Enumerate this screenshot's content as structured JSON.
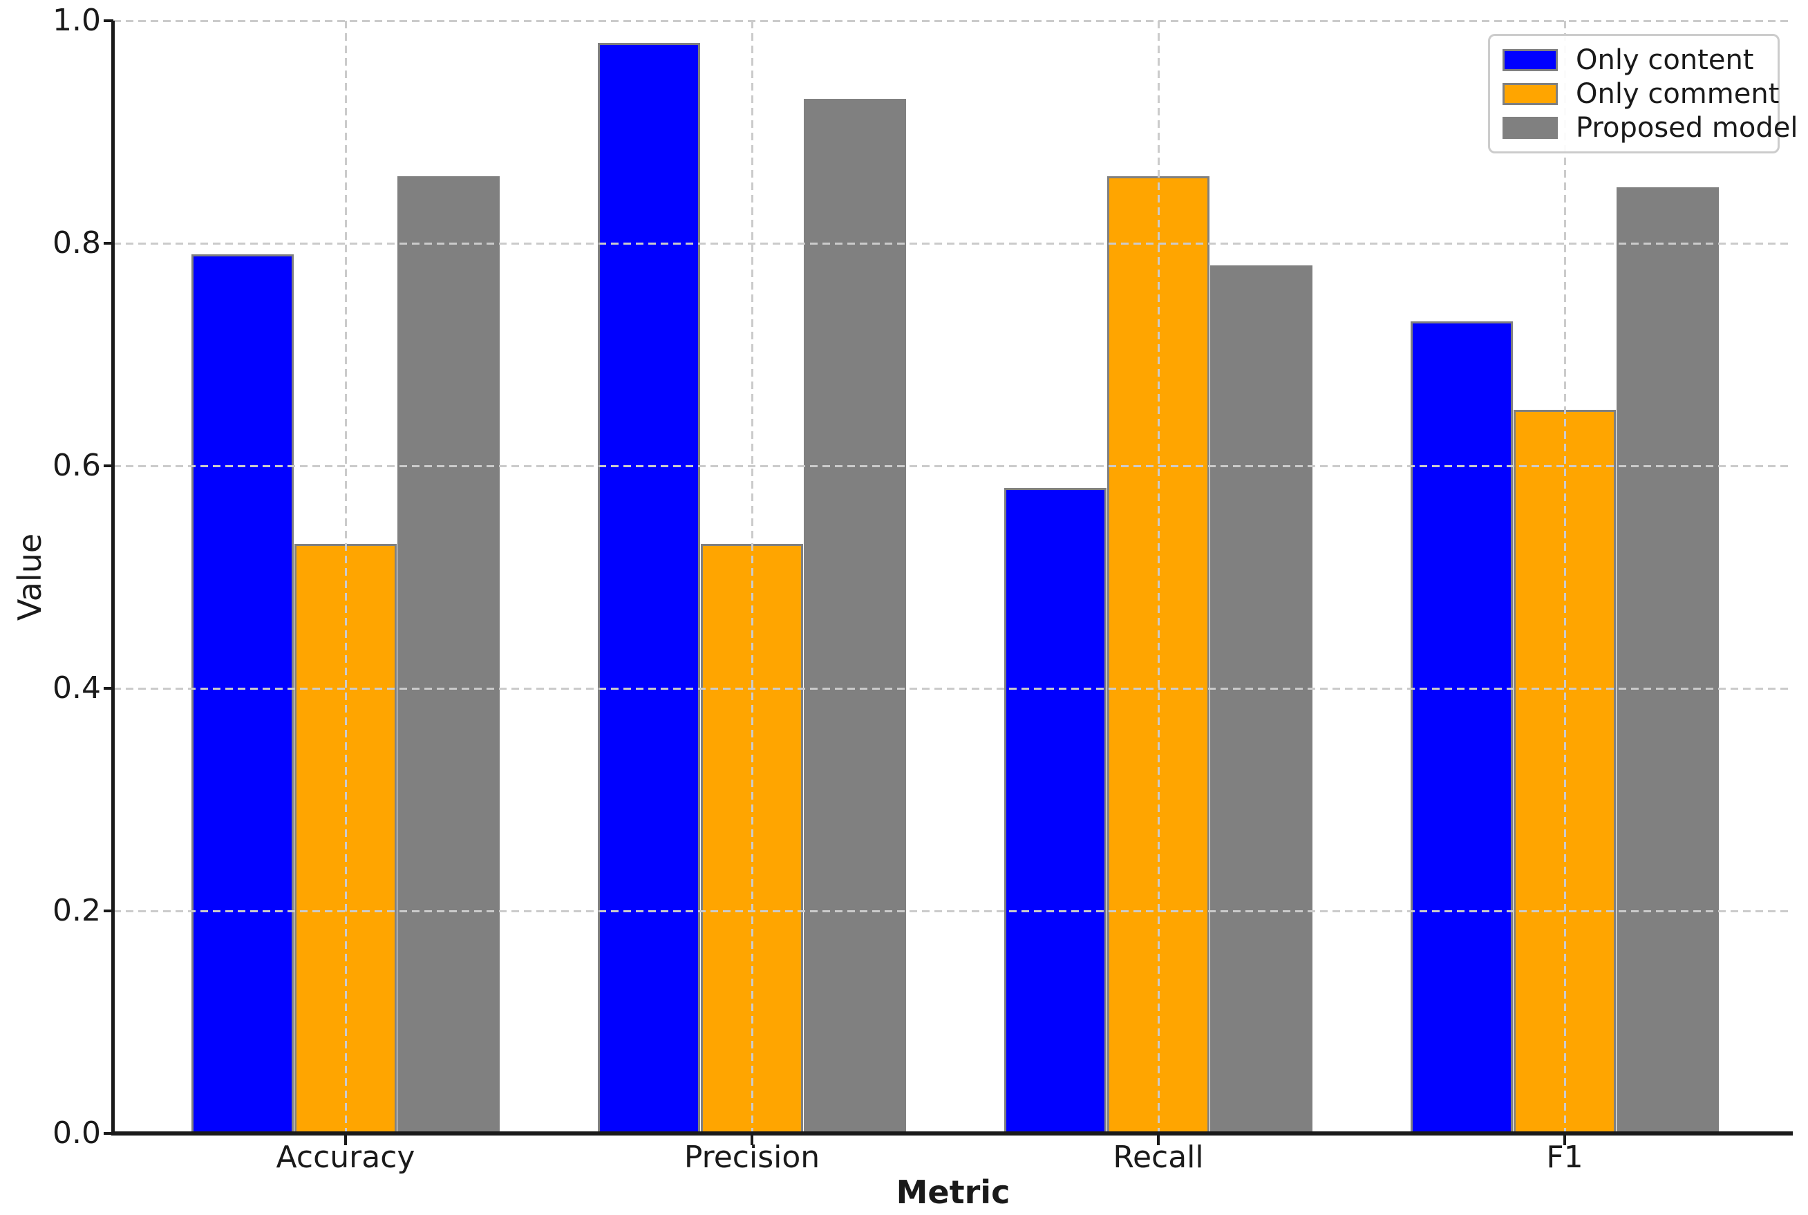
{
  "chart_data": {
    "type": "bar",
    "title": "",
    "categories": [
      "Accuracy",
      "Precision",
      "Recall",
      "F1"
    ],
    "series": [
      {
        "name": "Only content",
        "color": "#0000ff",
        "values": [
          0.79,
          0.98,
          0.58,
          0.73
        ]
      },
      {
        "name": "Only comment",
        "color": "#ffa500",
        "values": [
          0.53,
          0.53,
          0.86,
          0.65
        ]
      },
      {
        "name": "Proposed model",
        "color": "#808080",
        "values": [
          0.86,
          0.93,
          0.78,
          0.85
        ]
      }
    ],
    "xlabel": "Metric",
    "ylabel": "Value",
    "ylim": [
      0.0,
      1.0
    ],
    "yticks": [
      0.0,
      0.2,
      0.4,
      0.6,
      0.8,
      1.0
    ],
    "ytick_labels": [
      "0.0",
      "0.2",
      "0.4",
      "0.6",
      "0.8",
      "1.0"
    ],
    "grid": "both-axes",
    "grid_style": "dashed",
    "grid_over_bars": true,
    "legend": {
      "position": "upper right"
    },
    "bar_edge_color": "#808080",
    "colors": {
      "grid": "#cbcbcb",
      "axis": "#1a1a1a",
      "text": "#1a1a1a",
      "legend_border": "#cccccc",
      "background": "#ffffff"
    }
  }
}
